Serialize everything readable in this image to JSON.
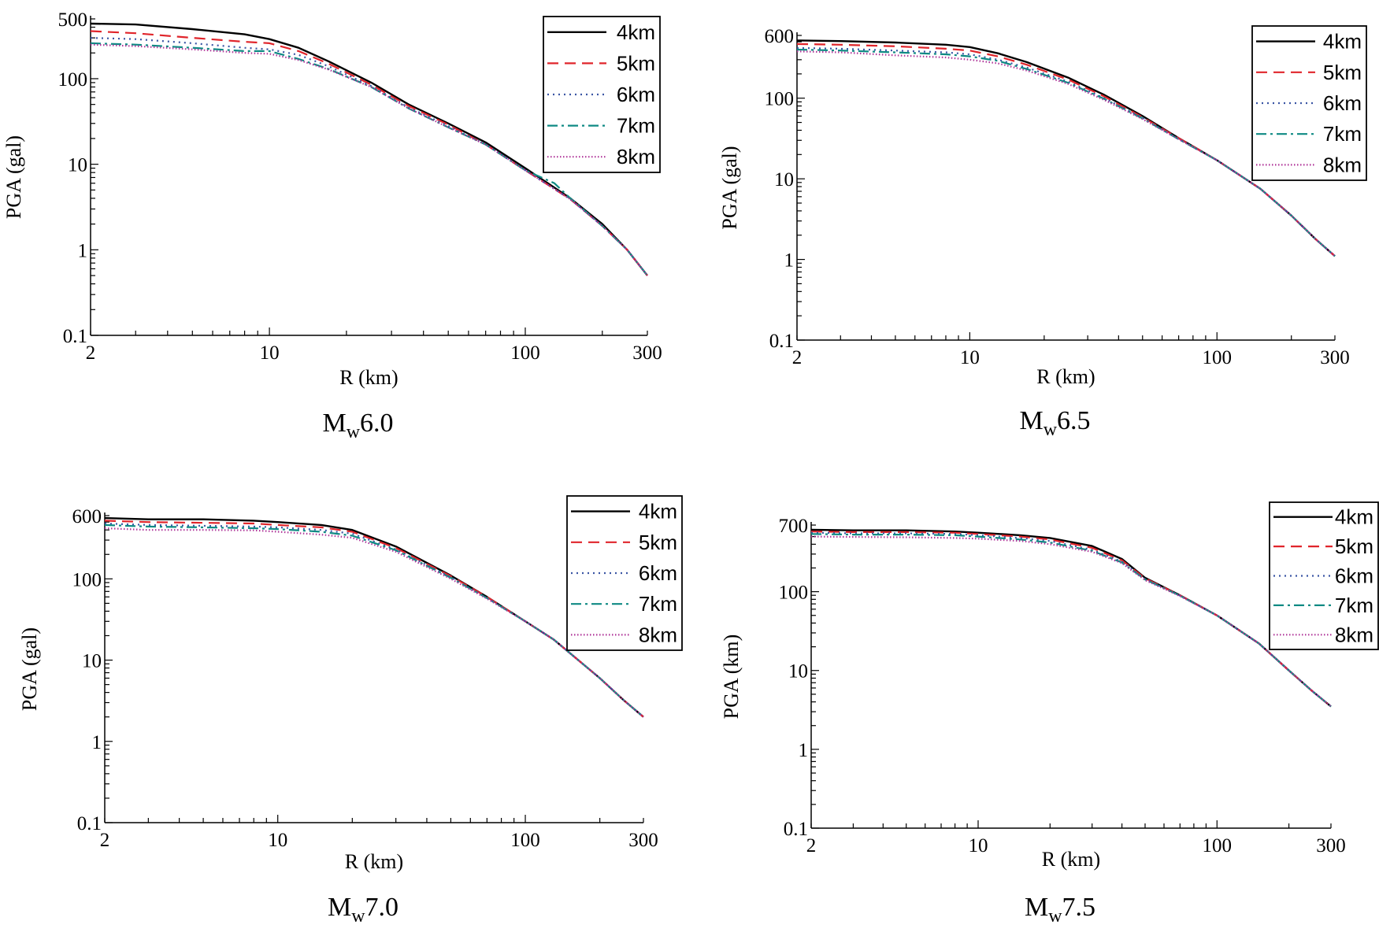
{
  "colors": {
    "4km": "#000000",
    "5km": "#e0252b",
    "6km": "#3a55a4",
    "7km": "#0f8a84",
    "8km": "#b0379a"
  },
  "chart_data": [
    {
      "type": "line",
      "caption": {
        "main": "M",
        "sub": "w",
        "tail": "6.0"
      },
      "xlabel": "R (km)",
      "ylabel": "PGA (gal)",
      "xscale": "log",
      "yscale": "log",
      "xlim": [
        2,
        300
      ],
      "ylim": [
        0.1,
        500
      ],
      "xticks": [
        {
          "v": 2,
          "label": "2"
        },
        {
          "v": 10,
          "label": "10"
        },
        {
          "v": 100,
          "label": "100"
        },
        {
          "v": 300,
          "label": "300"
        }
      ],
      "yticks": [
        {
          "v": 0.1,
          "label": "0.1"
        },
        {
          "v": 1,
          "label": "1"
        },
        {
          "v": 10,
          "label": "10"
        },
        {
          "v": 100,
          "label": "100"
        },
        {
          "v": 500,
          "label": "500"
        }
      ],
      "legend": "top-right",
      "series": [
        {
          "name": "4km",
          "style": "solid",
          "x": [
            2,
            3,
            5,
            8,
            10,
            13,
            17,
            25,
            35,
            50,
            70,
            100,
            150,
            200,
            250,
            300
          ],
          "y": [
            440,
            430,
            380,
            330,
            290,
            230,
            160,
            90,
            50,
            30,
            18,
            9,
            4,
            2,
            1,
            0.5
          ]
        },
        {
          "name": "5km",
          "style": "dashed",
          "x": [
            2,
            3,
            5,
            8,
            10,
            13,
            17,
            25,
            35,
            50,
            70,
            100,
            150,
            200,
            250,
            300
          ],
          "y": [
            360,
            340,
            300,
            270,
            260,
            210,
            150,
            85,
            48,
            29,
            17,
            8.5,
            3.9,
            1.9,
            1,
            0.5
          ]
        },
        {
          "name": "6km",
          "style": "dotted",
          "x": [
            2,
            3,
            5,
            8,
            10,
            13,
            17,
            25,
            35,
            50,
            70,
            100,
            150,
            200,
            250,
            300
          ],
          "y": [
            300,
            290,
            260,
            230,
            220,
            190,
            140,
            82,
            46,
            28,
            17,
            8.5,
            3.9,
            1.9,
            1,
            0.5
          ]
        },
        {
          "name": "7km",
          "style": "dashdot",
          "x": [
            2,
            3,
            5,
            8,
            10,
            13,
            17,
            25,
            35,
            50,
            70,
            100,
            130,
            150,
            200,
            250,
            300
          ],
          "y": [
            260,
            250,
            230,
            210,
            210,
            170,
            130,
            80,
            45,
            27,
            17,
            8.5,
            6,
            4,
            1.9,
            1,
            0.5
          ]
        },
        {
          "name": "8km",
          "style": "fine-dotted",
          "x": [
            2,
            3,
            5,
            8,
            10,
            13,
            17,
            25,
            35,
            50,
            70,
            100,
            150,
            200,
            250,
            300
          ],
          "y": [
            250,
            240,
            220,
            200,
            195,
            165,
            128,
            80,
            45,
            27,
            17,
            8.5,
            3.9,
            1.9,
            1,
            0.5
          ]
        }
      ]
    },
    {
      "type": "line",
      "caption": {
        "main": "M",
        "sub": "w",
        "tail": "6.5"
      },
      "xlabel": "R (km)",
      "ylabel": "PGA (gal)",
      "xscale": "log",
      "yscale": "log",
      "xlim": [
        2,
        300
      ],
      "ylim": [
        0.1,
        600
      ],
      "xticks": [
        {
          "v": 2,
          "label": "2"
        },
        {
          "v": 10,
          "label": "10"
        },
        {
          "v": 100,
          "label": "100"
        },
        {
          "v": 300,
          "label": "300"
        }
      ],
      "yticks": [
        {
          "v": 0.1,
          "label": "0.1"
        },
        {
          "v": 1,
          "label": "1"
        },
        {
          "v": 10,
          "label": "10"
        },
        {
          "v": 100,
          "label": "100"
        },
        {
          "v": 600,
          "label": "600"
        }
      ],
      "legend": "top-right",
      "series": [
        {
          "name": "4km",
          "style": "solid",
          "x": [
            2,
            3,
            5,
            8,
            10,
            13,
            17,
            25,
            35,
            50,
            70,
            100,
            150,
            200,
            250,
            300
          ],
          "y": [
            520,
            510,
            490,
            460,
            430,
            360,
            280,
            180,
            110,
            60,
            32,
            17,
            7.5,
            3.5,
            1.8,
            1.1
          ]
        },
        {
          "name": "5km",
          "style": "dashed",
          "x": [
            2,
            3,
            5,
            8,
            10,
            13,
            17,
            25,
            35,
            50,
            70,
            100,
            150,
            200,
            250,
            300
          ],
          "y": [
            470,
            460,
            440,
            410,
            390,
            330,
            260,
            170,
            105,
            58,
            32,
            17,
            7.5,
            3.5,
            1.8,
            1.1
          ]
        },
        {
          "name": "6km",
          "style": "dotted",
          "x": [
            2,
            3,
            5,
            8,
            10,
            13,
            17,
            25,
            35,
            50,
            70,
            100,
            150,
            200,
            250,
            300
          ],
          "y": [
            420,
            410,
            390,
            370,
            350,
            300,
            240,
            160,
            100,
            57,
            31,
            17,
            7.5,
            3.5,
            1.8,
            1.1
          ]
        },
        {
          "name": "7km",
          "style": "dashdot",
          "x": [
            2,
            3,
            5,
            8,
            10,
            13,
            17,
            25,
            35,
            50,
            70,
            100,
            150,
            200,
            250,
            300
          ],
          "y": [
            400,
            390,
            370,
            350,
            330,
            290,
            230,
            155,
            98,
            56,
            31,
            17,
            7.5,
            3.5,
            1.8,
            1.1
          ]
        },
        {
          "name": "8km",
          "style": "fine-dotted",
          "x": [
            2,
            3,
            5,
            8,
            10,
            13,
            17,
            25,
            35,
            50,
            70,
            100,
            150,
            200,
            250,
            300
          ],
          "y": [
            380,
            370,
            340,
            320,
            300,
            270,
            220,
            150,
            95,
            55,
            31,
            17,
            7.5,
            3.5,
            1.8,
            1.1
          ]
        }
      ]
    },
    {
      "type": "line",
      "caption": {
        "main": "M",
        "sub": "w",
        "tail": "7.0"
      },
      "xlabel": "R (km)",
      "ylabel": "PGA (gal)",
      "xscale": "log",
      "yscale": "log",
      "xlim": [
        2,
        300
      ],
      "ylim": [
        0.1,
        600
      ],
      "xticks": [
        {
          "v": 2,
          "label": "2"
        },
        {
          "v": 10,
          "label": "10"
        },
        {
          "v": 100,
          "label": "100"
        },
        {
          "v": 300,
          "label": "300"
        }
      ],
      "yticks": [
        {
          "v": 0.1,
          "label": "0.1"
        },
        {
          "v": 1,
          "label": "1"
        },
        {
          "v": 10,
          "label": "10"
        },
        {
          "v": 100,
          "label": "100"
        },
        {
          "v": 600,
          "label": "600"
        }
      ],
      "legend": "top-right",
      "series": [
        {
          "name": "4km",
          "style": "solid",
          "x": [
            2,
            3,
            5,
            8,
            10,
            15,
            20,
            30,
            50,
            70,
            100,
            130,
            200,
            250,
            300
          ],
          "y": [
            560,
            540,
            540,
            520,
            500,
            460,
            400,
            250,
            110,
            60,
            30,
            18,
            6,
            3.2,
            2
          ]
        },
        {
          "name": "5km",
          "style": "dashed",
          "x": [
            2,
            3,
            5,
            8,
            10,
            15,
            20,
            30,
            50,
            70,
            100,
            130,
            200,
            250,
            300
          ],
          "y": [
            520,
            500,
            490,
            480,
            460,
            430,
            380,
            240,
            108,
            60,
            30,
            18,
            6,
            3.2,
            2
          ]
        },
        {
          "name": "6km",
          "style": "dotted",
          "x": [
            2,
            3,
            5,
            8,
            10,
            15,
            20,
            30,
            50,
            70,
            100,
            130,
            200,
            250,
            300
          ],
          "y": [
            480,
            460,
            450,
            440,
            430,
            400,
            360,
            230,
            105,
            58,
            30,
            18,
            6,
            3.2,
            2
          ]
        },
        {
          "name": "7km",
          "style": "dashdot",
          "x": [
            2,
            3,
            5,
            8,
            10,
            15,
            20,
            30,
            50,
            70,
            100,
            130,
            200,
            250,
            300
          ],
          "y": [
            460,
            440,
            430,
            420,
            410,
            380,
            340,
            225,
            103,
            58,
            30,
            18,
            6,
            3.2,
            2
          ]
        },
        {
          "name": "8km",
          "style": "fine-dotted",
          "x": [
            2,
            3,
            5,
            8,
            10,
            15,
            20,
            30,
            50,
            70,
            100,
            130,
            200,
            250,
            300
          ],
          "y": [
            420,
            400,
            400,
            395,
            380,
            350,
            320,
            215,
            100,
            57,
            30,
            18,
            6,
            3.2,
            2
          ]
        }
      ]
    },
    {
      "type": "line",
      "caption": {
        "main": "M",
        "sub": "w",
        "tail": "7.5"
      },
      "xlabel": "R (km)",
      "ylabel": "PGA (km)",
      "xscale": "log",
      "yscale": "log",
      "xlim": [
        2,
        300
      ],
      "ylim": [
        0.1,
        700
      ],
      "xticks": [
        {
          "v": 2,
          "label": "2"
        },
        {
          "v": 10,
          "label": "10"
        },
        {
          "v": 100,
          "label": "100"
        },
        {
          "v": 300,
          "label": "300"
        }
      ],
      "yticks": [
        {
          "v": 0.1,
          "label": "0.1"
        },
        {
          "v": 1,
          "label": "1"
        },
        {
          "v": 10,
          "label": "10"
        },
        {
          "v": 100,
          "label": "100"
        },
        {
          "v": 700,
          "label": "700"
        }
      ],
      "legend": "top-right",
      "series": [
        {
          "name": "4km",
          "style": "solid",
          "x": [
            2,
            3,
            5,
            8,
            10,
            15,
            20,
            30,
            40,
            50,
            70,
            100,
            150,
            200,
            250,
            300
          ],
          "y": [
            610,
            600,
            600,
            580,
            560,
            520,
            480,
            380,
            260,
            150,
            90,
            50,
            22,
            10,
            5.5,
            3.5
          ]
        },
        {
          "name": "5km",
          "style": "dashed",
          "x": [
            2,
            3,
            5,
            8,
            10,
            15,
            20,
            30,
            40,
            50,
            70,
            100,
            150,
            200,
            250,
            300
          ],
          "y": [
            580,
            570,
            570,
            560,
            540,
            500,
            460,
            360,
            250,
            148,
            90,
            50,
            22,
            10,
            5.5,
            3.5
          ]
        },
        {
          "name": "6km",
          "style": "dotted",
          "x": [
            2,
            3,
            5,
            8,
            10,
            15,
            20,
            30,
            40,
            50,
            70,
            100,
            150,
            200,
            250,
            300
          ],
          "y": [
            560,
            550,
            550,
            540,
            520,
            480,
            440,
            340,
            240,
            145,
            89,
            50,
            22,
            10,
            5.5,
            3.5
          ]
        },
        {
          "name": "7km",
          "style": "dashdot",
          "x": [
            2,
            3,
            5,
            8,
            10,
            15,
            20,
            30,
            40,
            50,
            70,
            100,
            150,
            200,
            250,
            300
          ],
          "y": [
            540,
            530,
            530,
            520,
            500,
            460,
            420,
            330,
            235,
            143,
            89,
            50,
            22,
            10,
            5.5,
            3.5
          ]
        },
        {
          "name": "8km",
          "style": "fine-dotted",
          "x": [
            2,
            3,
            5,
            8,
            10,
            15,
            20,
            30,
            40,
            50,
            70,
            100,
            150,
            200,
            250,
            300
          ],
          "y": [
            500,
            495,
            490,
            480,
            470,
            440,
            400,
            320,
            230,
            140,
            88,
            50,
            22,
            10,
            5.5,
            3.5
          ]
        }
      ]
    }
  ]
}
